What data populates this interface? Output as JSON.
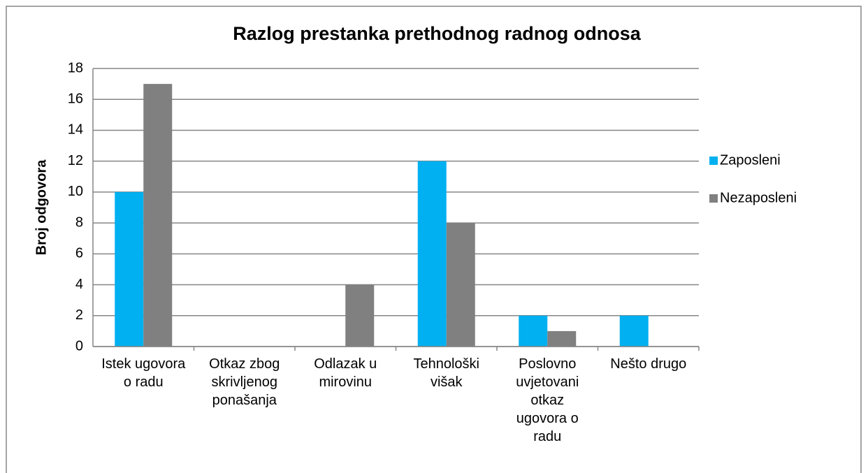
{
  "chart_data": {
    "type": "bar",
    "title": "Razlog prestanka prethodnog radnog odnosa",
    "y_label": "Broj odgovora",
    "categories": [
      "Istek ugovora o radu",
      "Otkaz zbog skrivljenog ponašanja",
      "Odlazak u mirovinu",
      "Tehnološki višak",
      "Poslovno uvjetovani otkaz ugovora o radu",
      "Nešto drugo"
    ],
    "series": [
      {
        "name": "Zaposleni",
        "color": "#00b0f0",
        "values": [
          10,
          0,
          0,
          12,
          2,
          2
        ]
      },
      {
        "name": "Nezaposleni",
        "color": "#808080",
        "values": [
          17,
          0,
          4,
          8,
          1,
          0
        ]
      }
    ],
    "ylim": [
      0,
      18
    ],
    "yticks": [
      0,
      2,
      4,
      6,
      8,
      10,
      12,
      14,
      16,
      18
    ],
    "grid": true,
    "legend": "right"
  }
}
